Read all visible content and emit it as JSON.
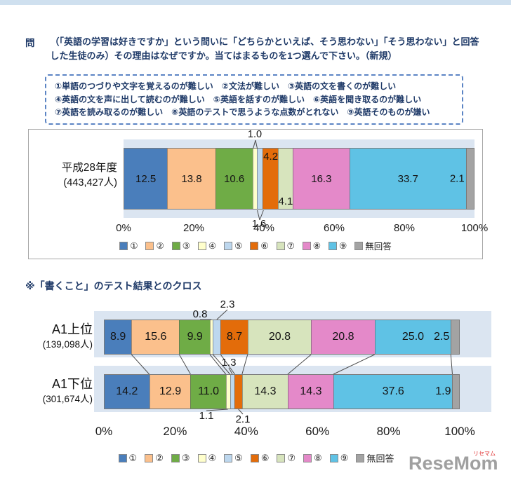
{
  "question": {
    "label": "問",
    "line1": "（「英語の学習は好きですか」という問いに「どちらかといえば、そう思わない」「そう思わない」と回答",
    "line2": "した生徒のみ）その理由はなぜですか。当てはまるものを1つ選んで下さい。（新規）"
  },
  "reasons_box": {
    "lines": [
      "①単語のつづりや文字を覚えるのが難しい　②文法が難しい　③英語の文を書くのが難しい",
      "④英語の文を声に出して読むのが難しい　⑤英語を話すのが難しい　⑥英語を聞き取るのが難しい",
      "⑦英語を読み取るのが難しい　⑧英語のテストで思うような点数がとれない　⑨英語そのものが嫌い"
    ]
  },
  "cross_heading": "※「書くこと」のテスト結果とのクロス",
  "watermark": {
    "text": "ReseMom",
    "ruby": "リセマム"
  },
  "colors": {
    "plot_band": "#dbe5f1",
    "panel_border": "#a6a6a6",
    "accent_navy": "#1f3a68"
  },
  "chart_data": [
    {
      "type": "bar",
      "subtype": "stacked-horizontal-percent",
      "unit": "%",
      "series_labels": [
        "①",
        "②",
        "③",
        "④",
        "⑤",
        "⑥",
        "⑦",
        "⑧",
        "⑨",
        "無回答"
      ],
      "series_colors": [
        "#4a7ebb",
        "#fbc08c",
        "#6fac46",
        "#ffffcc",
        "#bdd7ee",
        "#e36c0a",
        "#d7e4bd",
        "#e489c9",
        "#5fc2e5",
        "#a3a3a3"
      ],
      "x_ticks": [
        "0%",
        "20%",
        "40%",
        "60%",
        "80%",
        "100%"
      ],
      "xlim": [
        0,
        100
      ],
      "legend_position": "bottom",
      "rows": [
        {
          "label": "平成28年度",
          "sublabel": "(443,427人)",
          "values": [
            12.5,
            13.8,
            10.6,
            1.0,
            1.6,
            4.2,
            4.1,
            16.3,
            33.7,
            2.1
          ],
          "labels": [
            "12.5",
            "13.8",
            "10.6",
            "1.0",
            "1.6",
            "4.2",
            "4.1",
            "16.3",
            "33.7",
            "2.1"
          ]
        }
      ]
    },
    {
      "type": "bar",
      "subtype": "stacked-horizontal-percent",
      "title": "※「書くこと」のテスト結果とのクロス",
      "unit": "%",
      "series_labels": [
        "①",
        "②",
        "③",
        "④",
        "⑤",
        "⑥",
        "⑦",
        "⑧",
        "⑨",
        "無回答"
      ],
      "series_colors": [
        "#4a7ebb",
        "#fbc08c",
        "#6fac46",
        "#ffffcc",
        "#bdd7ee",
        "#e36c0a",
        "#d7e4bd",
        "#e489c9",
        "#5fc2e5",
        "#a3a3a3"
      ],
      "x_ticks": [
        "0%",
        "20%",
        "40%",
        "60%",
        "80%",
        "100%"
      ],
      "xlim": [
        0,
        100
      ],
      "legend_position": "bottom",
      "rows": [
        {
          "label": "A1上位",
          "sublabel": "(139,098人)",
          "values": [
            8.9,
            15.6,
            9.9,
            0.8,
            2.3,
            8.7,
            20.8,
            20.8,
            25.0,
            2.5
          ],
          "labels": [
            "8.9",
            "15.6",
            "9.9",
            "0.8",
            "2.3",
            "8.7",
            "20.8",
            "20.8",
            "25.0",
            "2.5"
          ]
        },
        {
          "label": "A1下位",
          "sublabel": "(301,674人)",
          "values": [
            14.2,
            12.9,
            11.0,
            1.1,
            1.3,
            2.1,
            14.3,
            14.3,
            37.6,
            1.9
          ],
          "labels": [
            "14.2",
            "12.9",
            "11.0",
            "1.1",
            "1.3",
            "2.1",
            "14.3",
            "14.3",
            "37.6",
            "1.9"
          ]
        }
      ]
    }
  ]
}
